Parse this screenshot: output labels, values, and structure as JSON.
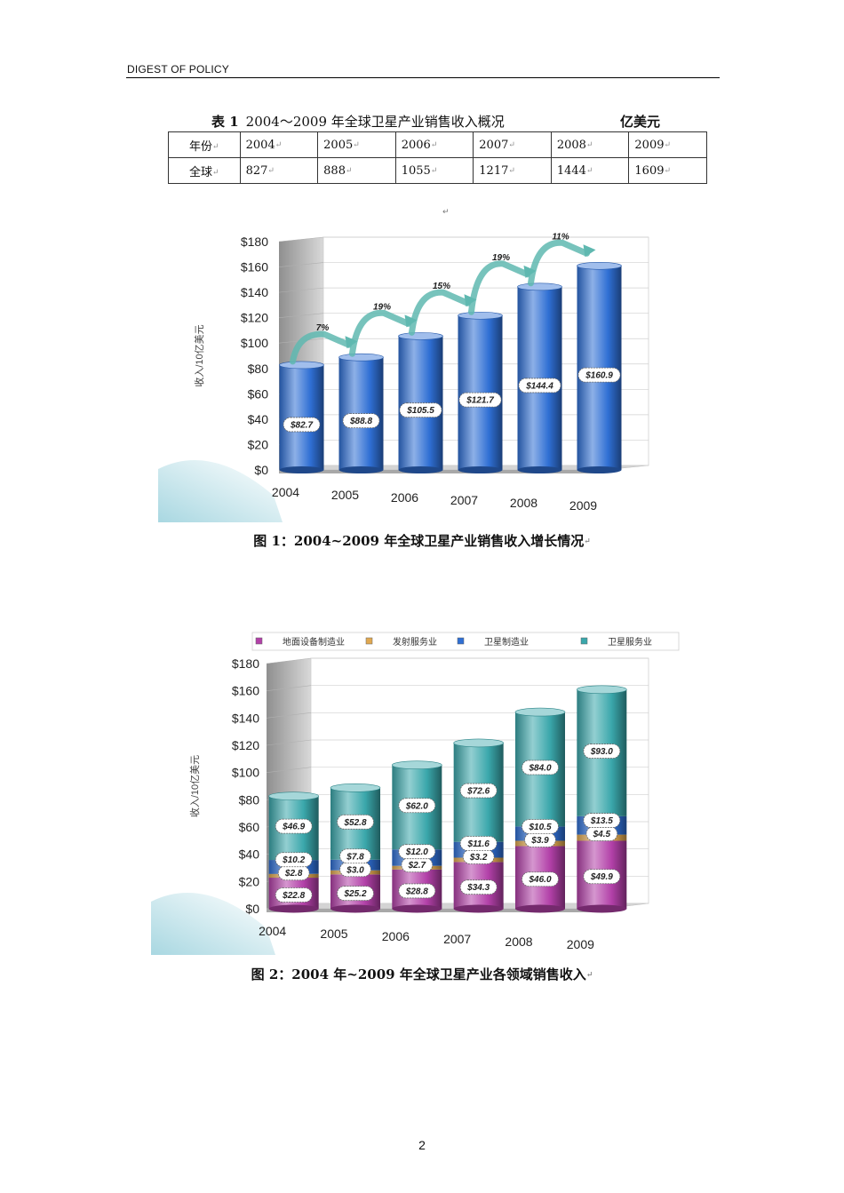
{
  "header": {
    "title": "DIGEST OF POLICY"
  },
  "table1": {
    "caption_num": "表 1",
    "caption_text": "2004～2009 年全球卫星产业销售收入概况",
    "unit": "亿美元",
    "row_year_label": "年份",
    "row_global_label": "全球",
    "years": [
      "2004",
      "2005",
      "2006",
      "2007",
      "2008",
      "2009"
    ],
    "values": [
      "827",
      "888",
      "1055",
      "1217",
      "1444",
      "1609"
    ]
  },
  "figure1_caption": "图 1：2004~2009 年全球卫星产业销售收入增长情况",
  "figure2_caption": "图 2：2004 年~2009 年全球卫星产业各领域销售收入",
  "page_number": "2",
  "chart_data": [
    {
      "type": "bar",
      "ylabel": "收入/10亿美元",
      "ylim": [
        0,
        180
      ],
      "yticks": [
        "$0",
        "$20",
        "$40",
        "$60",
        "$80",
        "$100",
        "$120",
        "$140",
        "$160",
        "$180"
      ],
      "categories": [
        "2004",
        "2005",
        "2006",
        "2007",
        "2008",
        "2009"
      ],
      "values": [
        82.7,
        88.8,
        105.5,
        121.7,
        144.4,
        160.9
      ],
      "value_labels": [
        "$82.7",
        "$88.8",
        "$105.5",
        "$121.7",
        "$144.4",
        "$160.9"
      ],
      "growth_labels": [
        "7%",
        "19%",
        "15%",
        "19%",
        "11%"
      ],
      "colors": {
        "bar": "#2f6fd4",
        "arrow": "#5fb8b0",
        "wall": "#a9a9a9"
      },
      "grid": true
    },
    {
      "type": "bar",
      "stacked": true,
      "ylabel": "收入/10亿美元",
      "ylim": [
        0,
        180
      ],
      "yticks": [
        "$0",
        "$20",
        "$40",
        "$60",
        "$80",
        "$100",
        "$120",
        "$140",
        "$160",
        "$180"
      ],
      "categories": [
        "2004",
        "2005",
        "2006",
        "2007",
        "2008",
        "2009"
      ],
      "legend_position": "top",
      "series": [
        {
          "name": "地面设备制造业",
          "color": "#b240a8",
          "values": [
            22.8,
            25.2,
            28.8,
            34.3,
            46.0,
            49.9
          ],
          "labels": [
            "$22.8",
            "$25.2",
            "$28.8",
            "$34.3",
            "$46.0",
            "$49.9"
          ]
        },
        {
          "name": "发射服务业",
          "color": "#e0a850",
          "values": [
            2.8,
            3.0,
            2.7,
            3.2,
            3.9,
            4.5
          ],
          "labels": [
            "$2.8",
            "$3.0",
            "$2.7",
            "$3.2",
            "$3.9",
            "$4.5"
          ]
        },
        {
          "name": "卫星制造业",
          "color": "#2f6fd4",
          "values": [
            10.2,
            7.8,
            12.0,
            11.6,
            10.5,
            13.5
          ],
          "labels": [
            "$10.2",
            "$7.8",
            "$12.0",
            "$11.6",
            "$10.5",
            "$13.5"
          ]
        },
        {
          "name": "卫星服务业",
          "color": "#3aa7ab",
          "values": [
            46.9,
            52.8,
            62.0,
            72.6,
            84.0,
            93.0
          ],
          "labels": [
            "$46.9",
            "$52.8",
            "$62.0",
            "$72.6",
            "$84.0",
            "$93.0"
          ]
        }
      ],
      "grid": true
    }
  ]
}
